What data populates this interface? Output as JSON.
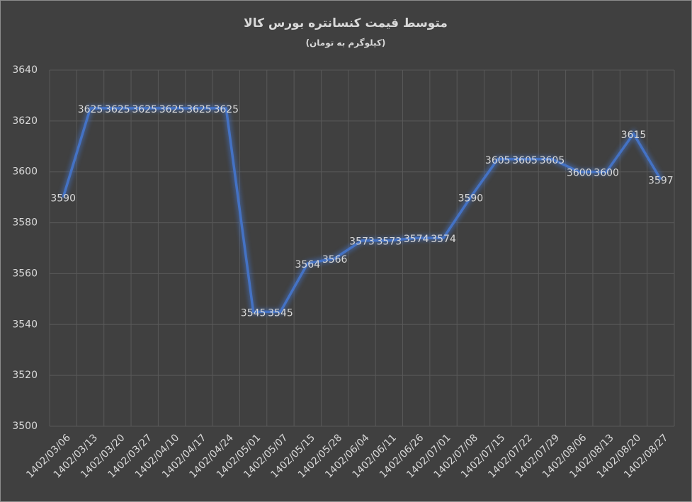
{
  "chart_data": {
    "type": "line",
    "title": "متوسط قیمت کنسانتره بورس کالا",
    "subtitle": "(کیلوگرم به تومان)",
    "categories": [
      "1402/03/06",
      "1402/03/13",
      "1402/03/20",
      "1402/03/27",
      "1402/04/10",
      "1402/04/17",
      "1402/04/24",
      "1402/05/01",
      "1402/05/07",
      "1402/05/15",
      "1402/05/28",
      "1402/06/04",
      "1402/06/11",
      "1402/06/26",
      "1402/07/01",
      "1402/07/08",
      "1402/07/15",
      "1402/07/22",
      "1402/07/29",
      "1402/08/06",
      "1402/08/13",
      "1402/08/20",
      "1402/08/27"
    ],
    "values": [
      3590,
      3625,
      3625,
      3625,
      3625,
      3625,
      3625,
      3545,
      3545,
      3564,
      3566,
      3573,
      3573,
      3574,
      3574,
      3590,
      3605,
      3605,
      3605,
      3600,
      3600,
      3615,
      3597
    ],
    "color": "#4472c4",
    "ylim": [
      3500,
      3640
    ],
    "yticks": [
      3500,
      3520,
      3540,
      3560,
      3580,
      3600,
      3620,
      3640
    ],
    "grid": true
  }
}
